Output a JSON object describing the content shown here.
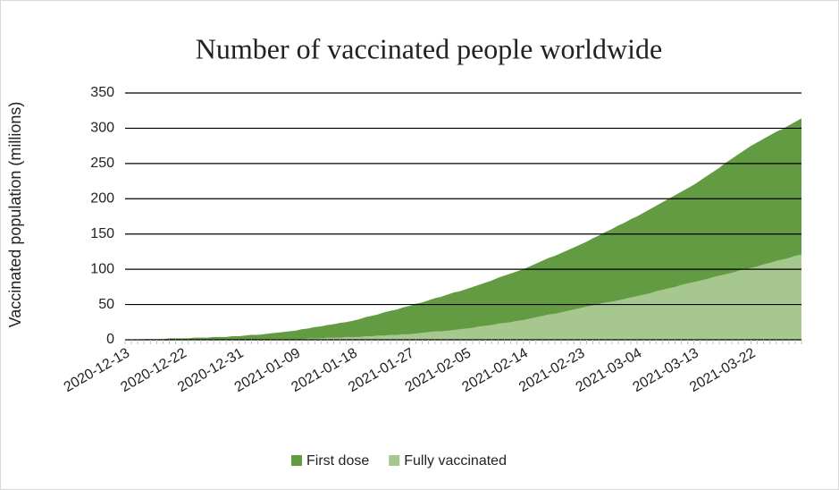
{
  "chart_data": {
    "type": "area",
    "title": "Number of vaccinated people worldwide",
    "y_label": "Vaccinated population (millions)",
    "categories": [
      "2020-12-13",
      null,
      null,
      null,
      null,
      null,
      null,
      null,
      null,
      "2020-12-22",
      null,
      null,
      null,
      null,
      null,
      null,
      null,
      null,
      "2020-12-31",
      null,
      null,
      null,
      null,
      null,
      null,
      null,
      null,
      "2021-01-09",
      null,
      null,
      null,
      null,
      null,
      null,
      null,
      null,
      "2021-01-18",
      null,
      null,
      null,
      null,
      null,
      null,
      null,
      null,
      "2021-01-27",
      null,
      null,
      null,
      null,
      null,
      null,
      null,
      null,
      "2021-02-05",
      null,
      null,
      null,
      null,
      null,
      null,
      null,
      null,
      "2021-02-14",
      null,
      null,
      null,
      null,
      null,
      null,
      null,
      null,
      "2021-02-23",
      null,
      null,
      null,
      null,
      null,
      null,
      null,
      null,
      "2021-03-04",
      null,
      null,
      null,
      null,
      null,
      null,
      null,
      null,
      "2021-03-13",
      null,
      null,
      null,
      null,
      null,
      null,
      null,
      null,
      "2021-03-22",
      null,
      null,
      null,
      null,
      null,
      null,
      null,
      null
    ],
    "series": [
      {
        "name": "First dose",
        "color": "#629b41",
        "values": [
          0,
          0,
          0,
          1,
          1,
          1,
          1,
          2,
          2,
          2,
          2,
          3,
          3,
          3,
          4,
          4,
          4,
          5,
          5,
          6,
          7,
          7,
          8,
          9,
          10,
          11,
          12,
          13,
          15,
          16,
          18,
          19,
          21,
          22,
          24,
          25,
          27,
          29,
          32,
          34,
          36,
          39,
          41,
          43,
          46,
          48,
          51,
          53,
          56,
          59,
          61,
          64,
          67,
          69,
          72,
          75,
          78,
          81,
          84,
          88,
          91,
          94,
          97,
          100,
          104,
          108,
          112,
          116,
          119,
          123,
          127,
          131,
          135,
          139,
          144,
          148,
          153,
          157,
          162,
          166,
          171,
          175,
          180,
          185,
          190,
          195,
          200,
          205,
          210,
          215,
          220,
          226,
          232,
          238,
          244,
          251,
          257,
          263,
          269,
          275,
          280,
          285,
          290,
          295,
          299,
          304,
          309,
          314
        ]
      },
      {
        "name": "Fully vaccinated",
        "color": "#a6c88f",
        "values": [
          0,
          0,
          0,
          0,
          0,
          0,
          0,
          0,
          0,
          0,
          0,
          0,
          0,
          0,
          0,
          0,
          0,
          0,
          0,
          0,
          0,
          0,
          0,
          1,
          1,
          1,
          1,
          1,
          1,
          2,
          2,
          2,
          3,
          3,
          3,
          4,
          4,
          4,
          5,
          5,
          6,
          6,
          7,
          7,
          8,
          8,
          9,
          10,
          11,
          12,
          12,
          13,
          14,
          15,
          16,
          17,
          19,
          20,
          21,
          23,
          24,
          25,
          27,
          28,
          30,
          32,
          34,
          36,
          37,
          39,
          41,
          43,
          45,
          47,
          49,
          51,
          53,
          54,
          56,
          58,
          60,
          62,
          64,
          66,
          69,
          71,
          73,
          75,
          78,
          80,
          82,
          84,
          86,
          89,
          91,
          93,
          95,
          98,
          100,
          102,
          104,
          107,
          109,
          112,
          114,
          116,
          119,
          121
        ]
      }
    ],
    "ylim": [
      0,
      350
    ],
    "yticks": [
      0,
      50,
      100,
      150,
      200,
      250,
      300,
      350
    ],
    "grid": true,
    "legend": "bottom"
  }
}
